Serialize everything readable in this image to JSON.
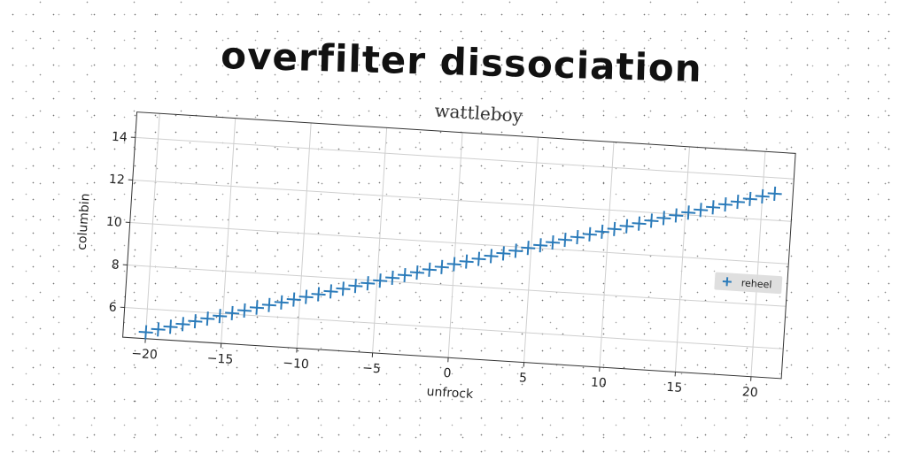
{
  "page_title": "overfilter dissociation",
  "chart_data": {
    "type": "scatter",
    "title": "wattleboy",
    "xlabel": "unfrock",
    "ylabel": "columbin",
    "xlim": [
      -21.5,
      22
    ],
    "ylim": [
      4.6,
      15.2
    ],
    "xticks": [
      -20,
      -15,
      -10,
      -5,
      0,
      5,
      10,
      15,
      20
    ],
    "yticks": [
      6,
      8,
      10,
      12,
      14
    ],
    "grid": true,
    "legend_position": "center-right",
    "series": [
      {
        "name": "reheel",
        "marker": "+",
        "color": "#2b7bba",
        "x": [
          -20,
          -19.2,
          -18.4,
          -17.6,
          -16.8,
          -16,
          -15.2,
          -14.4,
          -13.6,
          -12.8,
          -12,
          -11.2,
          -10.4,
          -9.6,
          -8.8,
          -8,
          -7.2,
          -6.4,
          -5.6,
          -4.8,
          -4,
          -3.2,
          -2.4,
          -1.6,
          -0.8,
          0,
          0.8,
          1.6,
          2.4,
          3.2,
          4,
          4.8,
          5.6,
          6.4,
          7.2,
          8,
          8.8,
          9.6,
          10.4,
          11.2,
          12,
          12.8,
          13.6,
          14.4,
          15.2,
          16,
          16.8,
          17.6,
          18.4,
          19.2,
          20,
          20.8
        ],
        "y": [
          4.9,
          5.07,
          5.23,
          5.39,
          5.56,
          5.72,
          5.88,
          6.05,
          6.21,
          6.38,
          6.54,
          6.7,
          6.87,
          7.03,
          7.19,
          7.36,
          7.52,
          7.69,
          7.85,
          8.01,
          8.18,
          8.34,
          8.5,
          8.67,
          8.83,
          9.0,
          9.16,
          9.32,
          9.49,
          9.65,
          9.81,
          9.98,
          10.14,
          10.31,
          10.47,
          10.63,
          10.8,
          10.96,
          11.12,
          11.29,
          11.45,
          11.62,
          11.78,
          11.94,
          12.11,
          12.27,
          12.43,
          12.6,
          12.76,
          12.93,
          13.09,
          13.25
        ]
      }
    ]
  }
}
